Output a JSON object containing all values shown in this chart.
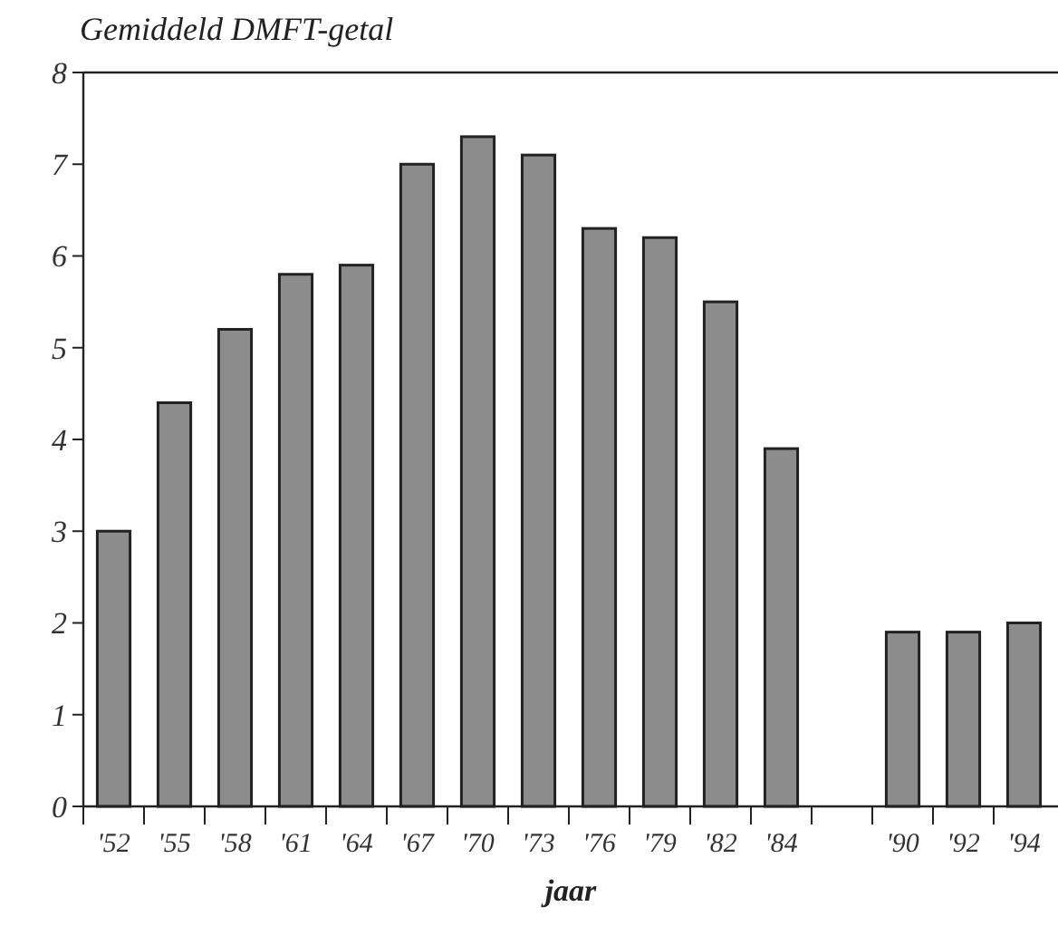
{
  "chart_data": {
    "type": "bar",
    "title": "Gemiddeld DMFT-getal",
    "xlabel": "jaar",
    "categories": [
      "'52",
      "'55",
      "'58",
      "'61",
      "'64",
      "'67",
      "'70",
      "'73",
      "'76",
      "'79",
      "'82",
      "'84",
      null,
      "'90",
      "'92",
      "'94"
    ],
    "values": [
      3.0,
      4.4,
      5.2,
      5.8,
      5.9,
      7.0,
      7.3,
      7.1,
      6.3,
      6.2,
      5.5,
      3.9,
      null,
      1.9,
      1.9,
      2.0
    ],
    "color": "#8c8c8c",
    "ylim": [
      0,
      8
    ],
    "yticks": [
      0,
      1,
      2,
      3,
      4,
      5,
      6,
      7,
      8
    ],
    "grid": false
  }
}
